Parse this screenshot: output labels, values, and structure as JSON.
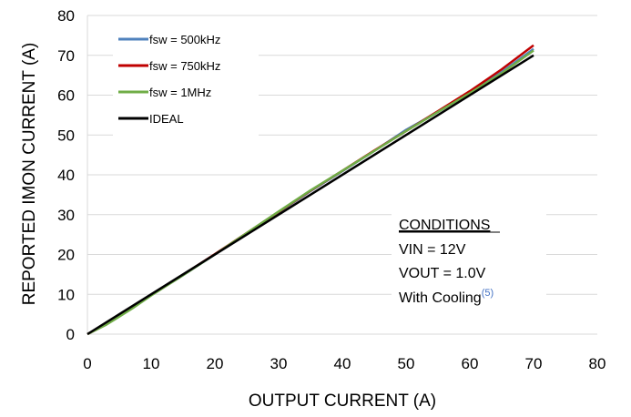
{
  "chart_data": {
    "type": "line",
    "title": "",
    "xlabel": "OUTPUT CURRENT (A)",
    "ylabel": "REPORTED IMON CURRENT (A)",
    "xlim": [
      0,
      80
    ],
    "ylim": [
      0,
      80
    ],
    "xticks": [
      "0",
      "10",
      "20",
      "30",
      "40",
      "50",
      "60",
      "70",
      "80"
    ],
    "yticks": [
      "0",
      "10",
      "20",
      "30",
      "40",
      "50",
      "60",
      "70",
      "80"
    ],
    "grid": "horizontal",
    "legend_position": "top-left",
    "series": [
      {
        "name": "fsw = 500kHz",
        "color": "#4f81bd",
        "points": [
          [
            0,
            0
          ],
          [
            3,
            2.5
          ],
          [
            7,
            6.5
          ],
          [
            10,
            9.8
          ],
          [
            15,
            14.8
          ],
          [
            20,
            20
          ],
          [
            25,
            25.3
          ],
          [
            30,
            30.6
          ],
          [
            35,
            35.9
          ],
          [
            40,
            40.9
          ],
          [
            45,
            46
          ],
          [
            50,
            51.3
          ],
          [
            55,
            55.8
          ],
          [
            60,
            60.6
          ],
          [
            65,
            65.8
          ],
          [
            70,
            71.6
          ]
        ]
      },
      {
        "name": "fsw = 750kHz",
        "color": "#c00000",
        "points": [
          [
            0,
            0
          ],
          [
            3,
            2.5
          ],
          [
            7,
            6.6
          ],
          [
            10,
            9.9
          ],
          [
            15,
            14.9
          ],
          [
            20,
            20.1
          ],
          [
            25,
            25.4
          ],
          [
            30,
            30.7
          ],
          [
            35,
            36
          ],
          [
            40,
            41
          ],
          [
            45,
            46.1
          ],
          [
            50,
            51
          ],
          [
            55,
            56
          ],
          [
            60,
            61
          ],
          [
            65,
            66.5
          ],
          [
            70,
            72.5
          ]
        ]
      },
      {
        "name": "fsw = 1MHz",
        "color": "#70ad47",
        "points": [
          [
            0,
            0
          ],
          [
            3,
            2.4
          ],
          [
            7,
            6.4
          ],
          [
            10,
            9.7
          ],
          [
            15,
            14.8
          ],
          [
            20,
            20
          ],
          [
            25,
            25.4
          ],
          [
            30,
            30.8
          ],
          [
            35,
            36.1
          ],
          [
            40,
            41
          ],
          [
            45,
            46
          ],
          [
            50,
            51
          ],
          [
            55,
            55.8
          ],
          [
            60,
            60.5
          ],
          [
            65,
            65.5
          ],
          [
            70,
            71.2
          ]
        ]
      },
      {
        "name": "IDEAL",
        "color": "#000000",
        "points": [
          [
            0,
            0
          ],
          [
            70,
            70
          ]
        ]
      }
    ],
    "annotation": {
      "heading": "CONDITIONS",
      "lines": [
        "VIN = 12V",
        "VOUT = 1.0V",
        "With Cooling"
      ],
      "superscript": "(5)"
    }
  }
}
